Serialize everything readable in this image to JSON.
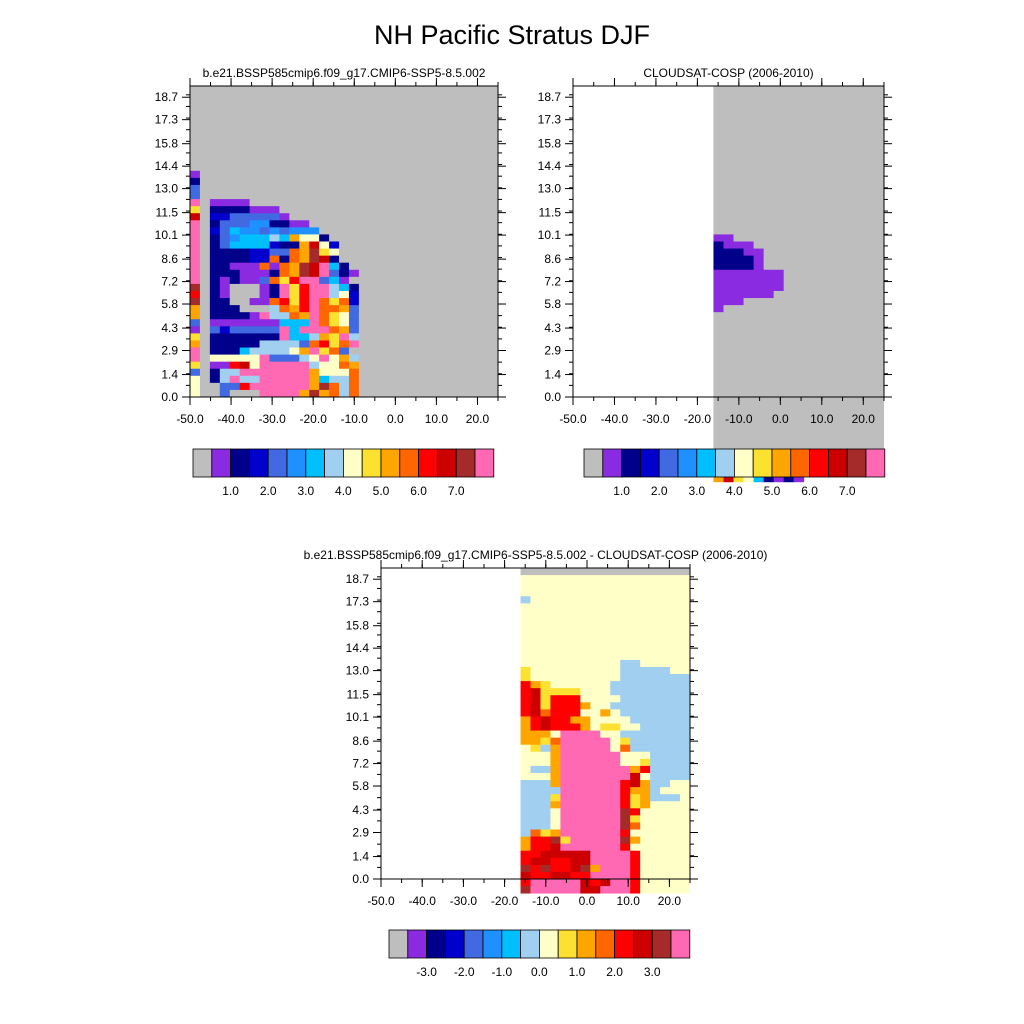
{
  "title": "NH Pacific Stratus DJF",
  "palette": {
    "missing": "#bebebe",
    "levels": [
      "#8a2be2",
      "#00008b",
      "#0000cd",
      "#4169e1",
      "#1e90ff",
      "#00bfff",
      "#a0cff0",
      "#ffffc8",
      "#fde131",
      "#ffa500",
      "#ff6600",
      "#ff0000",
      "#cd0000",
      "#a52a2a",
      "#ff69b4"
    ]
  },
  "chart_data": [
    {
      "type": "heatmap",
      "title": "b.e21.BSSP585cmip6.f09_g17.CMIP6-SSP5-8.5.002",
      "x_tick_labels": [
        "-50.0",
        "-40.0",
        "-30.0",
        "-20.0",
        "-10.0",
        "0.0",
        "10.0",
        "20.0"
      ],
      "y_tick_labels": [
        "0.0",
        "1.4",
        "2.9",
        "4.3",
        "5.8",
        "7.2",
        "8.6",
        "10.1",
        "11.5",
        "13.0",
        "14.4",
        "15.8",
        "17.3",
        "18.7"
      ],
      "xlim": [
        -50,
        25
      ],
      "ylim": [
        0,
        19.4
      ],
      "colorbar_labels": [
        "1.0",
        "2.0",
        "3.0",
        "4.0",
        "5.0",
        "6.0",
        "7.0"
      ],
      "rows": [
        "GGGGGGGGGGGGGGGGGGGGGGGGGGGGGGG",
        "GGGGGGGGGGGGGGGGGGGGGGGGGGGGGGG",
        "GGGGGGGGGGGGGGGGGGGGGGGGGGGGGGG",
        "GGGGGGGGGGGGGGGGGGGGGGGGGGGGGGG",
        "GGGGGGGGGGGGGGGGGGGGGGGGGGGGGGG",
        "GGGGGGGGGGGGGGGGGGGGGGGGGGGGGGG",
        "GGGGGGGGGGGGGGGGGGGGGGGGGGGGGGG",
        "GGGGGGGGGGGGGGGGGGGGGGGGGGGGGGG",
        "GGGGGGGGGGGGGGGGGGGGGGGGGGGGGGG",
        "GGGGGGGGGGGGGGGGGGGGGGGGGGGGGGG",
        "GGGGGGGGGGGGGGGGGGGGGGGGGGGGGGG",
        "GGGGGGGGGGGGGGGGGGGGGGGGGGGGGGG",
        "0GGGGGGGGGGGGGGGGGGGGGGGGGGGGGG",
        "1GGGGGGGGGGGGGGGGGGGGGGGGGGGGGG",
        "3GGGGGGGGGGGGGGGGGGGGGGGGGGGGGG",
        "3GGGGGGGGGGGGGGGGGGGGGGGGGGGGGG",
        "EG0000GGGGGGGGGGGGGGGGGGGGGGGGG",
        "8G1111000GGGGGGGGGGGGGGGGGGGGGG",
        "CG22333330GGGGGGGGGGGGGGGGGGGGG",
        "EG1333441100GGGGGGGGGGGGGGGGGGG",
        "EG23544343444GGGGGGGGGGGGGGGGGG",
        "EG134555659771GGGGGGGGGGGGGGGGG",
        "EG1355552119C72GGGGGGGGGGGGGGGG",
        "EG11112233A9D87GGGGGGGGGGGGGGGG",
        "EG111122A1A9DC1GGGGGGGGGGGGGGGG",
        "EG11000A0A9DCE51GGGGGGGGGGGGGGG",
        "EG1110001A9DCE310GGGGGGGGGGGGGG",
        "EG101003A8BEE350GGGGGGGGGGGGGGG",
        "DG10GGG01E8BEE651GGGGGGGGGGGGGG",
        "BG10GGG01E8BEE672GGGGGGGGGGGGGG",
        "DG11GG00AB8BEA8A2GGGGGGGGGGGGGG",
        "9G111GGG6A9BEAA93GGGGGGGGGGGGGG",
        "9G11110E66A9EA873GGGGGGGGGGGGGG",
        "3G0000000555EA873GGGGGGGGGGGGGG",
        "0G3233333E5EEEA93GGGGGGGGGGGGGG",
        "8G1111111E55698E6GGGGGGGGGGGGGG",
        "9G1111166663AB8AEGGGGGGGGGGGGGG",
        "EG1115666679E8A3GGGGGGGGGGGGGGG",
        "EG77777E33367E796GGGGGGGGGGGGGG",
        "8G00BC7EEEEE677A9GGGGGGGGGGGGGG",
        "3G166EEEEEEE9777AGGGGGGGGGGGGGG",
        "7G16E66EEEEE9566AGGGGGGGGGGGGGG",
        "7GG33BEEEEEE9DA6AGGGGGGGGGGGGGG",
        "7GG3GGGEEEE9D9A6AGGGGGGGGGGGGGG"
      ]
    },
    {
      "type": "heatmap",
      "title": "CLOUDSAT-COSP (2006-2010)",
      "x_tick_labels": [
        "-50.0",
        "-40.0",
        "-30.0",
        "-20.0",
        "-10.0",
        "0.0",
        "10.0",
        "20.0"
      ],
      "y_tick_labels": [
        "0.0",
        "1.4",
        "2.9",
        "4.3",
        "5.8",
        "7.2",
        "8.6",
        "10.1",
        "11.5",
        "13.0",
        "14.4",
        "15.8",
        "17.3",
        "18.7"
      ],
      "xlim": [
        -50,
        25
      ],
      "ylim": [
        0,
        19.4
      ],
      "colorbar_labels": [
        "1.0",
        "2.0",
        "3.0",
        "4.0",
        "5.0",
        "6.0",
        "7.0"
      ],
      "rows": [
        "..............GGGGGGGGGGGGGGGGGGG",
        "..............GGGGGGGGGGGGGGGGGGG",
        "..............GGGGGGGGGGGGGGGGGGG",
        "..............GGGGGGGGGGGGGGGGGGG",
        "..............GGGGGGGGGGGGGGGGGGG",
        "..............GGGGGGGGGGGGGGGGGGG",
        "..............GGGGGGGGGGGGGGGGGGG",
        "..............GGGGGGGGGGGGGGGGGGG",
        "..............GGGGGGGGGGGGGGGGGGG",
        "..............GGGGGGGGGGGGGGGGGGG",
        "..............GGGGGGGGGGGGGGGGGGG",
        "..............GGGGGGGGGGGGGGGGGGG",
        "..............GGGGGGGGGGGGGGGGGGG",
        "..............GGGGGGGGGGGGGGGGGGG",
        "..............GGGGGGGGGGGGGGGGGGG",
        "..............GGGGGGGGGGGGGGGGGGG",
        "..............GGGGGGGGGGGGGGGGGGG",
        "..............GGGGGGGGGGGGGGGGGGG",
        "..............GGGGGGGGGGGGGGGGGGG",
        "..............GGGGGGGGGGGGGGGGGGG",
        "..............GGGGGGGGGGGGGGGGGGG",
        "..............00GGGGGGGGGGGGGGGGG",
        "..............1000GGGGGGGGGGGGGGG",
        "..............11100GGGGGGGGGGGGGG",
        "..............11110GGGGGGGGGGGGGG",
        "..............11110GGGGGGGGGGGGGG",
        "..............0000000GGGGGGGGGGGG",
        "..............0000000GGGGGGGGGGGG",
        "..............0000000GGGGGGGGGGGG",
        "..............000000GGGGGGGGGGGGG",
        "..............000GGGGGGGGGGGGGGGG",
        "..............0GGGGGGGGGGGGGGGGGG",
        "..............GGGGGGGGGGGGGGGGGGG",
        "..............GGGGGGGGGGGGGGGGGGG",
        "..............GGGGGGGGGGGGGGGGGGG",
        "..............GGGGGGGGGGGGGGGGGGG",
        "..............GGGGGGGGGGGGGGGGGGG",
        "..............GGGGGGGGGGGGGGGGGGG",
        "..............GGGGGGGGGGGGGGGGGGG",
        "..............GGGGGGGGGGGGGGGGGGG",
        "..............GGGGGGGGGGGGGGGGGGG",
        "..............GGGGGGGGGGGGGGGGGGG",
        "..............GGGGGGGGGGGGGGGGGGG",
        "..............GGGGGGGGGGGGGGGGGGG",
        "..............GGGGGGGGGGGGGGGGGGG",
        "..............GGGGGGGGGGGGGGGGGGG",
        "..............GGGGGGGGGGGGGGGGGGG",
        "..............GGGGGGGGGGGGGGGGGGG",
        "..............GGGGGGGGGGGGGGGGGGG",
        "..............GGGGGGGGGGGGGGGGGGG",
        "..............GGGGGGGGGGGGGGGGGGG",
        "..............GGGGGGGGGGGGGGGGGGG",
        "..............GGGGGGGGGGGGGGGGGGG",
        "..............1100GGGGGGGGGGGGGGG",
        "..............7793122GGGGGGGGGGGG",
        "..............9C8751010.........."
      ]
    },
    {
      "type": "heatmap",
      "title": "b.e21.BSSP585cmip6.f09_g17.CMIP6-SSP5-8.5.002 - CLOUDSAT-COSP (2006-2010)",
      "x_tick_labels": [
        "-50.0",
        "-40.0",
        "-30.0",
        "-20.0",
        "-10.0",
        "0.0",
        "10.0",
        "20.0"
      ],
      "y_tick_labels": [
        "0.0",
        "1.4",
        "2.9",
        "4.3",
        "5.8",
        "7.2",
        "8.6",
        "10.1",
        "11.5",
        "13.0",
        "14.4",
        "15.8",
        "17.3",
        "18.7"
      ],
      "xlim": [
        -50,
        25
      ],
      "ylim": [
        0,
        19.4
      ],
      "colorbar_labels": [
        "-3.0",
        "-2.0",
        "-1.0",
        "0.0",
        "1.0",
        "2.0",
        "3.0"
      ],
      "rows": [
        "..............GGGGGGGGGGGGGGGGGGG",
        "..............7777777777777777777",
        "..............7777777777777777777",
        "..............7777777777777777777",
        "..............6777777777777777777",
        "..............7777777777777777777",
        "..............7777777777777777777",
        "..............7777777777777777777",
        "..............7777777777777777777",
        "..............7777777777777777777",
        "..............7777777777777777777",
        "..............7777777777777777777",
        "..............7777777777777777777",
        "..............7777777777667777777",
        "..............8777777777666667777",
        "..............8777777777666666677",
        "..............B9877777766666666777",
        "..............BC888877766666666677",
        "..............BC8BBB777766666666777",
        "..............BC8BBB977666666666777",
        "..............BCABBB779766666666677",
        "..............9BCBB99777766666666777",
        "..............9BCBBB9788776666666677",
        "..............9997EEEE7766666666677",
        "..............998AEEEEE786666666677",
        "..............7869EEEEE7A66666666677",
        "..............7779EEEEEE77766666677",
        "..............7779EEEEEE77866666777",
        "..............7669EEEEEEE9B6666777",
        "..............7779EEEEEEEC7666677",
        "..............6669EEEEEEBC966777",
        "..............6666EEEEEEB9967777",
        "..............6668EEEEEEB8966677",
        "..............6669EEEEEEB8977777",
        "..............6667EEEEEEDB777777",
        "..............6667EEEEEED8777777",
        "..............6667EEEEEEDA777777",
        "..............6A89EEEEEEB7777777",
        "..............9BBD8EEEEED9777777",
        "..............9BBCEEEEEEB7777777",
        "..............BBCCCCCEEEEB777777",
        "..............BCCBBCCEEEEB777777",
        "..............DBDBBCD9EEEB777777",
        "..............CBBCCBBEEEEB777777",
        "..............BEEEEECBCEEB7777777",
        "..............DEEEEECCEEEB7777777",
        ".............................."
      ]
    }
  ]
}
